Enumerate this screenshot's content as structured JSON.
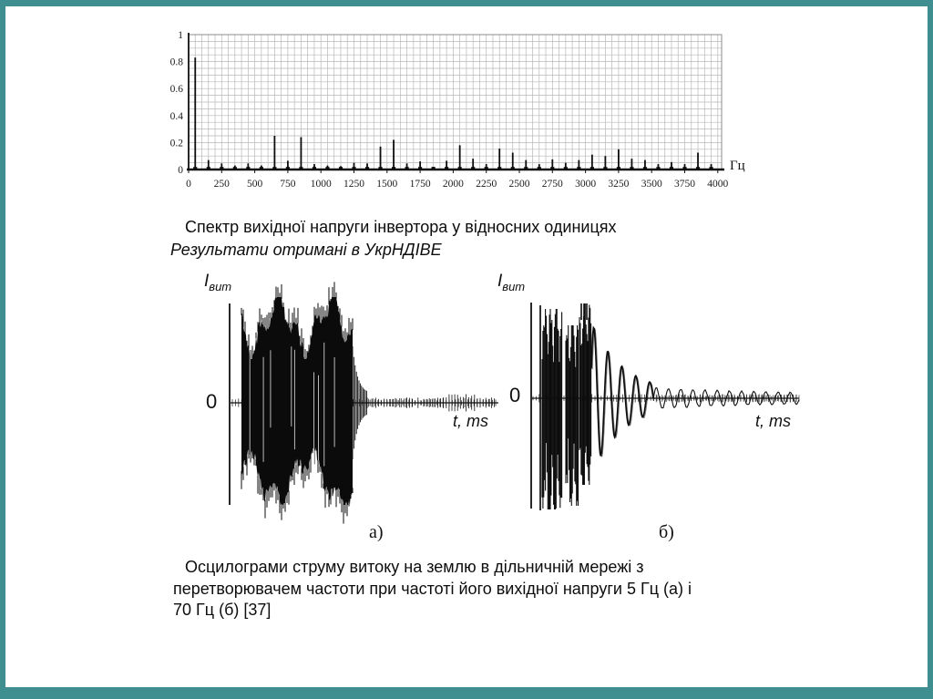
{
  "slide": {
    "background": "#ffffff",
    "frame_color": "#3f8e90"
  },
  "spectrum_caption": {
    "line1": "Спектр вихідної напруги інвертора у відносних одиницях",
    "line2": "Результати отримані в УкрНДІВЕ"
  },
  "bottom_caption": {
    "line1": "Осцилограми струму витоку на землю в дільничній мережі з",
    "line2": "перетворювачем частоти при частоті його вихідної напруги 5 Гц (а) і",
    "line3": "70 Гц (б) [37]"
  },
  "oscillograms": {
    "left": {
      "y_label_main": "I",
      "y_label_sub": "вит",
      "zero_label": "0",
      "x_label": "t, ms",
      "panel_label": "а)"
    },
    "right": {
      "y_label_main": "I",
      "y_label_sub": "вит",
      "zero_label": "0",
      "x_label": "t, ms",
      "panel_label": "б)"
    }
  },
  "chart_data": [
    {
      "type": "bar",
      "name": "inverter-output-voltage-spectrum",
      "title": "Спектр вихідної напруги інвертора у відносних одиницях",
      "xlabel": "Гц",
      "ylabel": "",
      "xlim": [
        0,
        4030
      ],
      "ylim": [
        0,
        1
      ],
      "x_ticks": [
        0,
        250,
        500,
        750,
        1000,
        1250,
        1500,
        1750,
        2000,
        2250,
        2500,
        2750,
        3000,
        3250,
        3500,
        3750,
        4000
      ],
      "y_ticks": [
        0,
        0.2,
        0.4,
        0.6,
        0.8,
        1
      ],
      "y_tick_labels": [
        "0",
        "0.2",
        "0.4",
        "0.6",
        "0.8",
        "1"
      ],
      "grid": "fine minor grid, 50 Hz by 0.05",
      "legend": "none",
      "points": [
        [
          50,
          0.83
        ],
        [
          150,
          0.07
        ],
        [
          250,
          0.045
        ],
        [
          350,
          0.03
        ],
        [
          450,
          0.045
        ],
        [
          550,
          0.03
        ],
        [
          650,
          0.25
        ],
        [
          750,
          0.065
        ],
        [
          850,
          0.24
        ],
        [
          950,
          0.04
        ],
        [
          1050,
          0.03
        ],
        [
          1150,
          0.025
        ],
        [
          1250,
          0.05
        ],
        [
          1350,
          0.045
        ],
        [
          1450,
          0.17
        ],
        [
          1550,
          0.22
        ],
        [
          1650,
          0.045
        ],
        [
          1750,
          0.06
        ],
        [
          1850,
          0.02
        ],
        [
          1950,
          0.065
        ],
        [
          2050,
          0.18
        ],
        [
          2150,
          0.08
        ],
        [
          2250,
          0.04
        ],
        [
          2350,
          0.155
        ],
        [
          2450,
          0.125
        ],
        [
          2550,
          0.07
        ],
        [
          2650,
          0.04
        ],
        [
          2750,
          0.075
        ],
        [
          2850,
          0.05
        ],
        [
          2950,
          0.07
        ],
        [
          3050,
          0.11
        ],
        [
          3150,
          0.1
        ],
        [
          3250,
          0.15
        ],
        [
          3350,
          0.08
        ],
        [
          3450,
          0.07
        ],
        [
          3550,
          0.04
        ],
        [
          3650,
          0.055
        ],
        [
          3750,
          0.04
        ],
        [
          3850,
          0.125
        ],
        [
          3950,
          0.04
        ]
      ]
    },
    {
      "type": "line",
      "name": "leakage-current-oscillogram-a-5Hz",
      "xlabel": "t, ms",
      "ylabel": "Iвит",
      "description": "dense saturated noise-like burst occupying the first ~40% of the trace, amplitude ~±1, followed by a fast decay and a small residual ripple (~±0.05) around the marked zero line",
      "burst": {
        "start_frac": 0.08,
        "end_frac": 0.47,
        "top_amplitude": 1.0,
        "bottom_amplitude": 0.95
      },
      "residual_amplitude": 0.05
    },
    {
      "type": "line",
      "name": "leakage-current-oscillogram-b-70Hz",
      "xlabel": "t, ms",
      "ylabel": "Iвит",
      "description": "three dense high-amplitude oscillation packets with deep negative spikes, transitioning into an exponentially decaying sine and then a small steady ripple (~±0.05) around the zero line",
      "initial_amplitude": 1.0,
      "decay_to": 0.04,
      "packets": 3
    }
  ]
}
